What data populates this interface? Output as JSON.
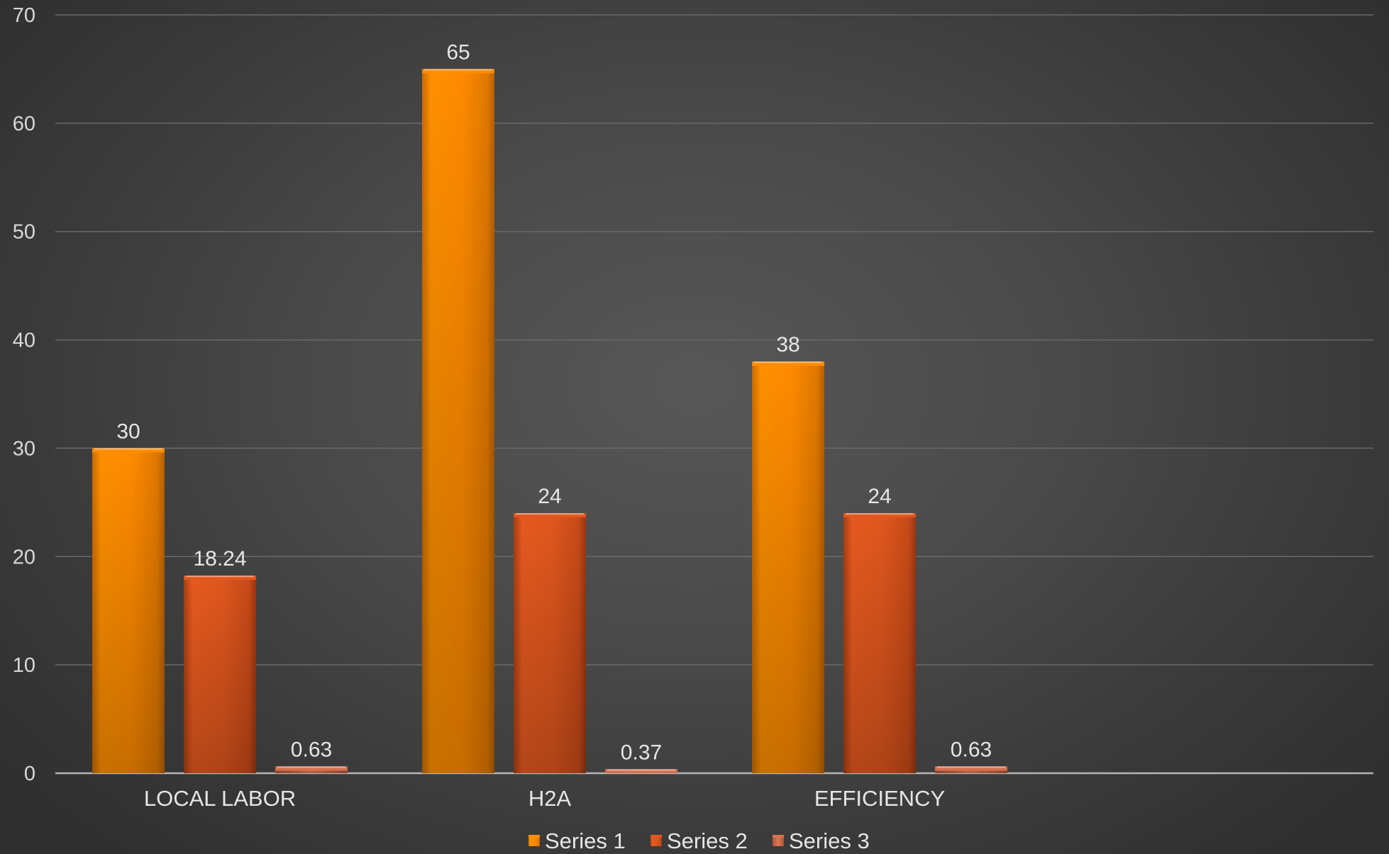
{
  "chart_data": {
    "type": "bar",
    "categories": [
      "LOCAL LABOR",
      "H2A",
      "EFFICIENCY"
    ],
    "series": [
      {
        "name": "Series 1",
        "values": [
          30,
          65,
          38
        ],
        "labels": [
          "30",
          "65",
          "38"
        ],
        "color": "#ff8c00"
      },
      {
        "name": "Series 2",
        "values": [
          18.24,
          24,
          24
        ],
        "labels": [
          "18.24",
          "24",
          "24"
        ],
        "color": "#e2571e"
      },
      {
        "name": "Series 3",
        "values": [
          0.63,
          0.37,
          0.63
        ],
        "labels": [
          "0.63",
          "0.37",
          "0.63"
        ],
        "color": "#d8734f"
      }
    ],
    "ylim": [
      0,
      70
    ],
    "yticks": [
      0,
      10,
      20,
      30,
      40,
      50,
      60,
      70
    ],
    "grid": true,
    "legend_position": "bottom",
    "title": "",
    "xlabel": "",
    "ylabel": "",
    "background_color": "#4a4a4a"
  }
}
